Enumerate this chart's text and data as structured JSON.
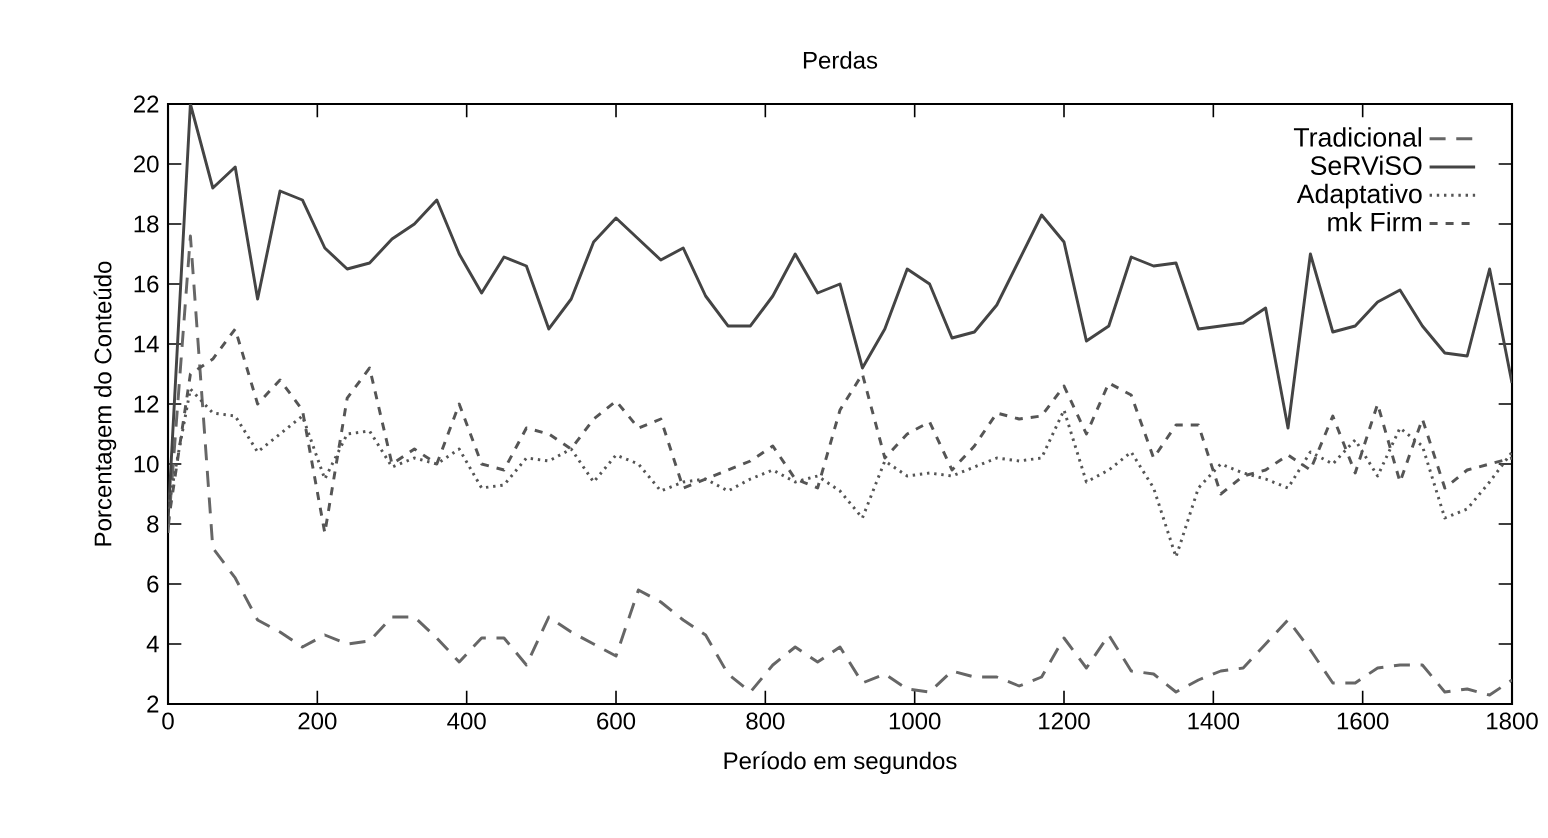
{
  "chart_data": {
    "type": "line",
    "title": "Perdas",
    "xlabel": "Período em segundos",
    "ylabel": "Porcentagem do Conteúdo",
    "x": [
      0,
      30,
      60,
      90,
      120,
      150,
      180,
      210,
      240,
      270,
      300,
      330,
      360,
      390,
      420,
      450,
      480,
      510,
      540,
      570,
      600,
      630,
      660,
      690,
      720,
      750,
      780,
      810,
      840,
      870,
      900,
      930,
      960,
      990,
      1020,
      1050,
      1080,
      1110,
      1140,
      1170,
      1200,
      1230,
      1260,
      1290,
      1320,
      1350,
      1380,
      1410,
      1440,
      1470,
      1500,
      1530,
      1560,
      1590,
      1620,
      1650,
      1680,
      1710,
      1740,
      1770,
      1800
    ],
    "series": [
      {
        "name": "Tradicional",
        "color": "#666666",
        "line_style": "dashed",
        "values": [
          7.7,
          17.6,
          7.2,
          6.2,
          4.8,
          4.4,
          3.9,
          4.3,
          4.0,
          4.1,
          4.9,
          4.9,
          4.2,
          3.4,
          4.2,
          4.2,
          3.3,
          4.9,
          4.4,
          4.0,
          3.6,
          5.8,
          5.4,
          4.8,
          4.3,
          3.0,
          2.4,
          3.3,
          3.9,
          3.4,
          3.9,
          2.7,
          3.0,
          2.5,
          2.4,
          3.1,
          2.9,
          2.9,
          2.6,
          2.9,
          4.2,
          3.2,
          4.3,
          3.1,
          3.0,
          2.4,
          2.8,
          3.1,
          3.2,
          4.0,
          4.8,
          3.8,
          2.7,
          2.7,
          3.2,
          3.3,
          3.3,
          2.4,
          2.5,
          2.3,
          2.8
        ]
      },
      {
        "name": "SeRViSO",
        "color": "#444444",
        "line_style": "solid",
        "values": [
          8.1,
          22.0,
          19.2,
          19.9,
          15.5,
          19.1,
          18.8,
          17.2,
          16.5,
          16.7,
          17.5,
          18.0,
          18.8,
          17.0,
          15.7,
          16.9,
          16.6,
          14.5,
          15.5,
          17.4,
          18.2,
          17.5,
          16.8,
          17.2,
          15.6,
          14.6,
          14.6,
          15.6,
          17.0,
          15.7,
          16.0,
          13.2,
          14.5,
          16.5,
          16.0,
          14.2,
          14.4,
          15.3,
          16.8,
          18.3,
          17.4,
          14.1,
          14.6,
          16.9,
          16.6,
          16.7,
          14.5,
          14.6,
          14.7,
          15.2,
          11.2,
          17.0,
          14.4,
          14.6,
          15.4,
          15.8,
          14.6,
          13.7,
          13.6,
          16.5,
          12.7
        ]
      },
      {
        "name": "Adaptativo",
        "color": "#555555",
        "line_style": "dotted",
        "values": [
          8.5,
          12.5,
          11.7,
          11.6,
          10.4,
          11.0,
          11.6,
          9.5,
          11.0,
          11.1,
          9.9,
          10.2,
          10.0,
          10.5,
          9.2,
          9.3,
          10.2,
          10.1,
          10.5,
          9.4,
          10.3,
          10.0,
          9.1,
          9.4,
          9.5,
          9.1,
          9.5,
          9.8,
          9.4,
          9.6,
          9.1,
          8.2,
          10.1,
          9.6,
          9.7,
          9.6,
          9.9,
          10.2,
          10.1,
          10.2,
          11.8,
          9.4,
          9.8,
          10.4,
          9.2,
          6.9,
          9.2,
          10.0,
          9.7,
          9.5,
          9.2,
          10.4,
          10.0,
          10.8,
          9.6,
          11.2,
          10.6,
          8.2,
          8.5,
          9.4,
          10.4
        ]
      },
      {
        "name": "mk Firm",
        "color": "#555555",
        "line_style": "dashed",
        "values": [
          8.0,
          13.0,
          13.5,
          14.5,
          12.0,
          12.8,
          11.8,
          7.7,
          12.2,
          13.2,
          10.0,
          10.5,
          10.0,
          12.0,
          10.0,
          9.8,
          11.2,
          11.0,
          10.5,
          11.5,
          12.1,
          11.2,
          11.5,
          9.2,
          9.5,
          9.8,
          10.1,
          10.6,
          9.5,
          9.2,
          11.8,
          13.0,
          10.2,
          11.0,
          11.4,
          9.8,
          10.6,
          11.7,
          11.5,
          11.6,
          12.6,
          11.0,
          12.7,
          12.3,
          10.2,
          11.3,
          11.3,
          9.0,
          9.6,
          9.8,
          10.3,
          9.8,
          11.6,
          9.7,
          12.0,
          9.4,
          11.5,
          9.2,
          9.8,
          10.0,
          10.2
        ]
      }
    ],
    "xlim": [
      0,
      1800
    ],
    "ylim": [
      2,
      22
    ],
    "xticks": [
      0,
      200,
      400,
      600,
      800,
      1000,
      1200,
      1400,
      1600,
      1800
    ],
    "yticks": [
      2,
      4,
      6,
      8,
      10,
      12,
      14,
      16,
      18,
      20,
      22
    ],
    "legend": "top right",
    "grid": false,
    "marker": "none"
  }
}
